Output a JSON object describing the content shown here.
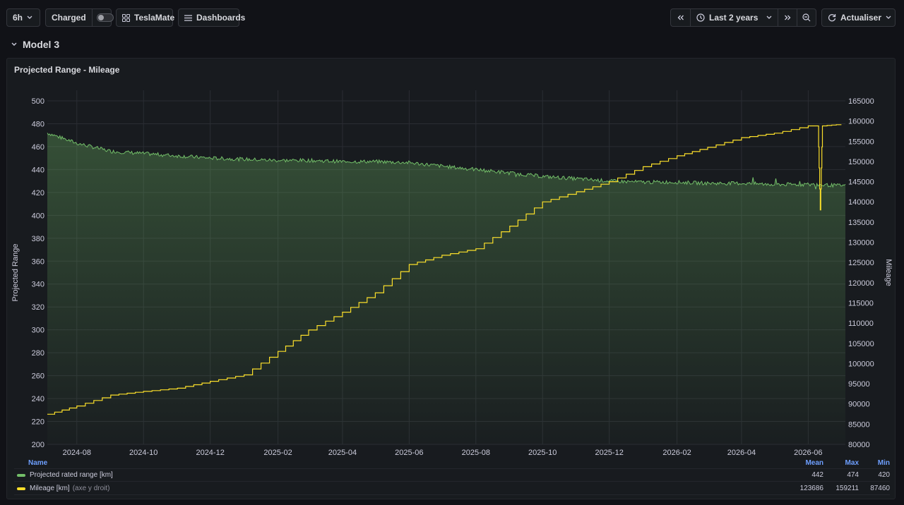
{
  "toolbar": {
    "interval": "6h",
    "charged_label": "Charged",
    "teslamate_label": "TeslaMate",
    "dashboards_label": "Dashboards",
    "time_range": "Last 2 years",
    "refresh_label": "Actualiser"
  },
  "row": {
    "title": "Model 3"
  },
  "panel": {
    "title": "Projected Range - Mileage"
  },
  "legend": {
    "headers": {
      "name": "Name",
      "mean": "Mean",
      "max": "Max",
      "min": "Min"
    },
    "series": [
      {
        "name": "Projected rated range [km]",
        "hint": "",
        "color": "#73bf69",
        "mean": "442",
        "max": "474",
        "min": "420"
      },
      {
        "name": "Mileage [km]",
        "hint": "(axe y droit)",
        "color": "#fade2a",
        "mean": "123686",
        "max": "159211",
        "min": "87460"
      }
    ]
  },
  "chart_data": {
    "type": "line",
    "ylabel": "Projected Range",
    "y2label": "Mileage",
    "ylim": [
      200,
      500
    ],
    "y2lim": [
      80000,
      165000
    ],
    "yticks": [
      200,
      220,
      240,
      260,
      280,
      300,
      320,
      340,
      360,
      380,
      400,
      420,
      440,
      460,
      480,
      500
    ],
    "y2ticks": [
      80000,
      85000,
      90000,
      95000,
      100000,
      105000,
      110000,
      115000,
      120000,
      125000,
      130000,
      135000,
      140000,
      145000,
      150000,
      155000,
      160000,
      165000
    ],
    "xlim": [
      "2024-07-05",
      "2026-07-05"
    ],
    "xticks": [
      "2024-08",
      "2024-10",
      "2024-12",
      "2025-02",
      "2025-04",
      "2025-06",
      "2025-08",
      "2025-10",
      "2025-12",
      "2026-02",
      "2026-04",
      "2026-06"
    ],
    "grid": true,
    "series": [
      {
        "name": "Projected rated range [km]",
        "axis": "left",
        "color": "#73bf69",
        "x": [
          "2024-07-05",
          "2024-08-01",
          "2024-09-01",
          "2024-10-01",
          "2024-11-01",
          "2024-12-01",
          "2025-01-01",
          "2025-02-01",
          "2025-03-01",
          "2025-04-01",
          "2025-05-01",
          "2025-06-01",
          "2025-07-01",
          "2025-08-01",
          "2025-09-01",
          "2025-10-01",
          "2025-11-01",
          "2025-12-01",
          "2026-01-01",
          "2026-02-01",
          "2026-03-01",
          "2026-04-01",
          "2026-05-01",
          "2026-06-01",
          "2026-07-01"
        ],
        "y": [
          472,
          463,
          456,
          454,
          452,
          450,
          449,
          448,
          448,
          447,
          447,
          446,
          443,
          440,
          437,
          434,
          432,
          430,
          429,
          429,
          428,
          428,
          427,
          427,
          426
        ]
      },
      {
        "name": "Mileage [km]",
        "axis": "right",
        "color": "#fade2a",
        "x": [
          "2024-07-05",
          "2024-08-01",
          "2024-09-01",
          "2024-10-01",
          "2024-11-01",
          "2024-12-01",
          "2025-01-01",
          "2025-02-01",
          "2025-03-01",
          "2025-04-01",
          "2025-05-01",
          "2025-06-01",
          "2025-07-01",
          "2025-08-01",
          "2025-09-01",
          "2025-10-01",
          "2025-11-01",
          "2025-12-01",
          "2026-01-01",
          "2026-02-01",
          "2026-03-01",
          "2026-04-01",
          "2026-05-01",
          "2026-06-01",
          "2026-06-10",
          "2026-06-12",
          "2026-06-14",
          "2026-07-01"
        ],
        "y": [
          87460,
          89500,
          92200,
          93100,
          93900,
          95600,
          97200,
          103000,
          108300,
          112700,
          117500,
          124500,
          126800,
          128400,
          134000,
          140000,
          142500,
          145000,
          148700,
          151400,
          153500,
          155900,
          157000,
          158800,
          158800,
          138000,
          158800,
          159211
        ]
      }
    ]
  }
}
